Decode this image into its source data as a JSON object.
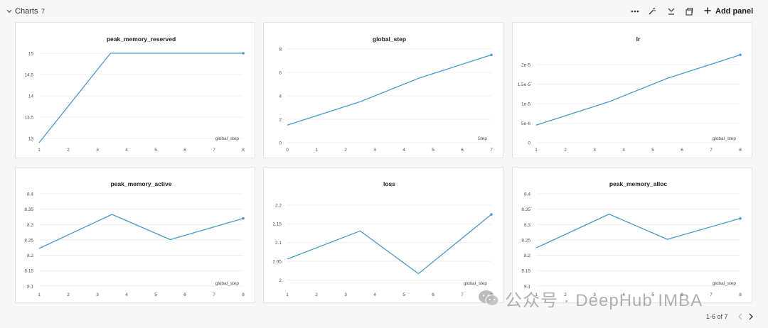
{
  "header": {
    "title": "Charts",
    "count": "7",
    "add_panel_label": "Add panel"
  },
  "footer": {
    "pagination": "1-6 of 7"
  },
  "watermark": {
    "text": "公众号 · DeepHub IMBA"
  },
  "colors": {
    "line": "#4a98c9",
    "grid": "#e9eaec",
    "tick": "#4a4d52"
  },
  "chart_data": [
    {
      "type": "line",
      "title": "peak_memory_reserved",
      "xlabel": "global_step",
      "xlim": [
        1,
        8
      ],
      "ylim": [
        12.9,
        15.1
      ],
      "xticks": [
        {
          "v": 1,
          "t": "1"
        },
        {
          "v": 2,
          "t": "2"
        },
        {
          "v": 3,
          "t": "3"
        },
        {
          "v": 4,
          "t": "4"
        },
        {
          "v": 5,
          "t": "5"
        },
        {
          "v": 6,
          "t": "6"
        },
        {
          "v": 7,
          "t": "7"
        },
        {
          "v": 8,
          "t": "8"
        }
      ],
      "yticks": [
        {
          "v": 13,
          "t": "13"
        },
        {
          "v": 13.5,
          "t": "13.5"
        },
        {
          "v": 14,
          "t": "14"
        },
        {
          "v": 14.5,
          "t": "14.5"
        },
        {
          "v": 15,
          "t": "15"
        }
      ],
      "x": [
        1,
        3.45,
        8
      ],
      "y": [
        12.9,
        15.0,
        15.0
      ]
    },
    {
      "type": "line",
      "title": "global_step",
      "xlabel": "Step",
      "xlim": [
        0,
        7
      ],
      "ylim": [
        0,
        8
      ],
      "xticks": [
        {
          "v": 0,
          "t": "0"
        },
        {
          "v": 1,
          "t": "1"
        },
        {
          "v": 2,
          "t": "2"
        },
        {
          "v": 3,
          "t": "3"
        },
        {
          "v": 4,
          "t": "4"
        },
        {
          "v": 5,
          "t": "5"
        },
        {
          "v": 6,
          "t": "6"
        },
        {
          "v": 7,
          "t": "7"
        }
      ],
      "yticks": [
        {
          "v": 0,
          "t": "0"
        },
        {
          "v": 2,
          "t": "2"
        },
        {
          "v": 4,
          "t": "4"
        },
        {
          "v": 6,
          "t": "6"
        },
        {
          "v": 8,
          "t": "8"
        }
      ],
      "x": [
        0,
        2.5,
        4.5,
        7
      ],
      "y": [
        1.5,
        3.5,
        5.5,
        7.5
      ]
    },
    {
      "type": "line",
      "title": "lr",
      "xlabel": "global_step",
      "xlim": [
        1,
        8
      ],
      "ylim": [
        0,
        2.4e-05
      ],
      "xticks": [
        {
          "v": 1,
          "t": "1"
        },
        {
          "v": 2,
          "t": "2"
        },
        {
          "v": 3,
          "t": "3"
        },
        {
          "v": 4,
          "t": "4"
        },
        {
          "v": 5,
          "t": "5"
        },
        {
          "v": 6,
          "t": "6"
        },
        {
          "v": 7,
          "t": "7"
        },
        {
          "v": 8,
          "t": "8"
        }
      ],
      "yticks": [
        {
          "v": 0,
          "t": "0"
        },
        {
          "v": 5e-06,
          "t": "5e-6"
        },
        {
          "v": 1e-05,
          "t": "1e-5"
        },
        {
          "v": 1.5e-05,
          "t": "1.5e-5"
        },
        {
          "v": 2e-05,
          "t": "2e-5"
        }
      ],
      "x": [
        1,
        3.5,
        5.5,
        8
      ],
      "y": [
        4.5e-06,
        1.05e-05,
        1.65e-05,
        2.25e-05
      ]
    },
    {
      "type": "line",
      "title": "peak_memory_active",
      "xlabel": "global_step",
      "xlim": [
        1,
        8
      ],
      "ylim": [
        8.095,
        8.4
      ],
      "xticks": [
        {
          "v": 1,
          "t": "1"
        },
        {
          "v": 2,
          "t": "2"
        },
        {
          "v": 3,
          "t": "3"
        },
        {
          "v": 4,
          "t": "4"
        },
        {
          "v": 5,
          "t": "5"
        },
        {
          "v": 6,
          "t": "6"
        },
        {
          "v": 7,
          "t": "7"
        },
        {
          "v": 8,
          "t": "8"
        }
      ],
      "yticks": [
        {
          "v": 8.1,
          "t": "8.1"
        },
        {
          "v": 8.15,
          "t": "8.15"
        },
        {
          "v": 8.2,
          "t": "8.2"
        },
        {
          "v": 8.25,
          "t": "8.25"
        },
        {
          "v": 8.3,
          "t": "8.3"
        },
        {
          "v": 8.35,
          "t": "8.35"
        },
        {
          "v": 8.4,
          "t": "8.4"
        }
      ],
      "x": [
        1,
        3.5,
        5.5,
        8
      ],
      "y": [
        8.222,
        8.333,
        8.251,
        8.32
      ]
    },
    {
      "type": "line",
      "title": "loss",
      "xlabel": "global_step",
      "xlim": [
        1,
        8
      ],
      "ylim": [
        1.98,
        2.23
      ],
      "xticks": [
        {
          "v": 1,
          "t": "1"
        },
        {
          "v": 2,
          "t": "2"
        },
        {
          "v": 3,
          "t": "3"
        },
        {
          "v": 4,
          "t": "4"
        },
        {
          "v": 5,
          "t": "5"
        },
        {
          "v": 6,
          "t": "6"
        },
        {
          "v": 7,
          "t": "7"
        },
        {
          "v": 8,
          "t": "8"
        }
      ],
      "yticks": [
        {
          "v": 2,
          "t": "2"
        },
        {
          "v": 2.05,
          "t": "2.05"
        },
        {
          "v": 2.1,
          "t": "2.1"
        },
        {
          "v": 2.15,
          "t": "2.15"
        },
        {
          "v": 2.2,
          "t": "2.2"
        }
      ],
      "x": [
        1,
        3.5,
        5.5,
        8
      ],
      "y": [
        2.056,
        2.131,
        2.017,
        2.175
      ]
    },
    {
      "type": "line",
      "title": "peak_memory_alloc",
      "xlabel": "global_step",
      "xlim": [
        1,
        8
      ],
      "ylim": [
        8.095,
        8.4
      ],
      "xticks": [
        {
          "v": 1,
          "t": "1"
        },
        {
          "v": 2,
          "t": "2"
        },
        {
          "v": 3,
          "t": "3"
        },
        {
          "v": 4,
          "t": "4"
        },
        {
          "v": 5,
          "t": "5"
        },
        {
          "v": 6,
          "t": "6"
        },
        {
          "v": 7,
          "t": "7"
        },
        {
          "v": 8,
          "t": "8"
        }
      ],
      "yticks": [
        {
          "v": 8.1,
          "t": "8.1"
        },
        {
          "v": 8.15,
          "t": "8.15"
        },
        {
          "v": 8.2,
          "t": "8.2"
        },
        {
          "v": 8.25,
          "t": "8.25"
        },
        {
          "v": 8.3,
          "t": "8.3"
        },
        {
          "v": 8.35,
          "t": "8.35"
        },
        {
          "v": 8.4,
          "t": "8.4"
        }
      ],
      "x": [
        1,
        3.5,
        5.5,
        8
      ],
      "y": [
        8.224,
        8.334,
        8.252,
        8.32
      ]
    }
  ]
}
